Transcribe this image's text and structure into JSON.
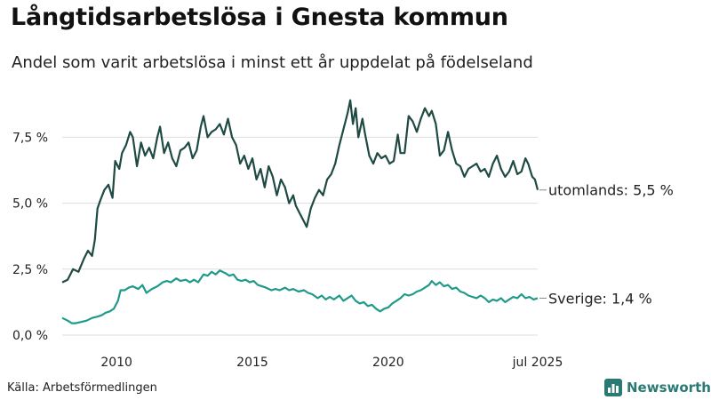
{
  "title": "Långtidsarbetslösa i Gnesta kommun",
  "subtitle": "Andel som varit arbetslösa i minst ett år uppdelat på födelseland",
  "source": "Källa: Arbetsförmedlingen",
  "brand": "Newsworthy",
  "chart_data": {
    "type": "line",
    "title": "Långtidsarbetslösa i Gnesta kommun",
    "subtitle": "Andel som varit arbetslösa i minst ett år uppdelat på födelseland",
    "xlim": [
      2008.0,
      2025.5
    ],
    "ylim": [
      0,
      9.5
    ],
    "grid": true,
    "x_ticks": [
      {
        "value": 2010,
        "label": "2010"
      },
      {
        "value": 2015,
        "label": "2015"
      },
      {
        "value": 2020,
        "label": "2020"
      },
      {
        "value": 2025.5,
        "label": "jul 2025"
      }
    ],
    "y_ticks": [
      {
        "value": 0,
        "label": "0,0 %"
      },
      {
        "value": 2.5,
        "label": "2,5 %"
      },
      {
        "value": 5,
        "label": "5,0 %"
      },
      {
        "value": 7.5,
        "label": "7,5 %"
      }
    ],
    "series": [
      {
        "name": "utomlands",
        "label": "utomlands: 5,5 %",
        "color": "#1f4a44",
        "points": [
          [
            2008.0,
            2.0
          ],
          [
            2008.2,
            2.1
          ],
          [
            2008.4,
            2.5
          ],
          [
            2008.6,
            2.4
          ],
          [
            2008.8,
            2.9
          ],
          [
            2008.95,
            3.2
          ],
          [
            2009.1,
            3.0
          ],
          [
            2009.2,
            3.6
          ],
          [
            2009.3,
            4.8
          ],
          [
            2009.4,
            5.1
          ],
          [
            2009.55,
            5.5
          ],
          [
            2009.7,
            5.7
          ],
          [
            2009.85,
            5.2
          ],
          [
            2009.95,
            6.6
          ],
          [
            2010.1,
            6.3
          ],
          [
            2010.2,
            6.9
          ],
          [
            2010.35,
            7.2
          ],
          [
            2010.5,
            7.7
          ],
          [
            2010.6,
            7.5
          ],
          [
            2010.75,
            6.4
          ],
          [
            2010.9,
            7.3
          ],
          [
            2011.05,
            6.8
          ],
          [
            2011.2,
            7.1
          ],
          [
            2011.35,
            6.7
          ],
          [
            2011.5,
            7.5
          ],
          [
            2011.6,
            7.9
          ],
          [
            2011.75,
            6.9
          ],
          [
            2011.9,
            7.3
          ],
          [
            2012.05,
            6.7
          ],
          [
            2012.2,
            6.4
          ],
          [
            2012.35,
            7.0
          ],
          [
            2012.5,
            7.1
          ],
          [
            2012.65,
            7.3
          ],
          [
            2012.8,
            6.7
          ],
          [
            2012.95,
            7.0
          ],
          [
            2013.1,
            7.9
          ],
          [
            2013.2,
            8.3
          ],
          [
            2013.35,
            7.5
          ],
          [
            2013.5,
            7.7
          ],
          [
            2013.65,
            7.8
          ],
          [
            2013.8,
            8.0
          ],
          [
            2013.95,
            7.6
          ],
          [
            2014.1,
            8.2
          ],
          [
            2014.25,
            7.5
          ],
          [
            2014.4,
            7.2
          ],
          [
            2014.55,
            6.5
          ],
          [
            2014.7,
            6.8
          ],
          [
            2014.85,
            6.3
          ],
          [
            2015.0,
            6.7
          ],
          [
            2015.15,
            5.9
          ],
          [
            2015.3,
            6.3
          ],
          [
            2015.45,
            5.6
          ],
          [
            2015.6,
            6.4
          ],
          [
            2015.75,
            6.0
          ],
          [
            2015.9,
            5.3
          ],
          [
            2016.05,
            5.9
          ],
          [
            2016.2,
            5.6
          ],
          [
            2016.35,
            5.0
          ],
          [
            2016.5,
            5.3
          ],
          [
            2016.6,
            4.9
          ],
          [
            2016.75,
            4.6
          ],
          [
            2016.9,
            4.3
          ],
          [
            2017.0,
            4.1
          ],
          [
            2017.15,
            4.8
          ],
          [
            2017.3,
            5.2
          ],
          [
            2017.45,
            5.5
          ],
          [
            2017.6,
            5.3
          ],
          [
            2017.75,
            5.9
          ],
          [
            2017.9,
            6.1
          ],
          [
            2018.05,
            6.5
          ],
          [
            2018.2,
            7.2
          ],
          [
            2018.35,
            7.8
          ],
          [
            2018.5,
            8.4
          ],
          [
            2018.6,
            8.9
          ],
          [
            2018.7,
            8.0
          ],
          [
            2018.8,
            8.6
          ],
          [
            2018.9,
            7.5
          ],
          [
            2019.05,
            8.2
          ],
          [
            2019.15,
            7.6
          ],
          [
            2019.3,
            6.8
          ],
          [
            2019.45,
            6.5
          ],
          [
            2019.6,
            6.9
          ],
          [
            2019.75,
            6.7
          ],
          [
            2019.9,
            6.8
          ],
          [
            2020.05,
            6.5
          ],
          [
            2020.2,
            6.6
          ],
          [
            2020.35,
            7.6
          ],
          [
            2020.45,
            6.9
          ],
          [
            2020.6,
            6.9
          ],
          [
            2020.75,
            8.3
          ],
          [
            2020.9,
            8.1
          ],
          [
            2021.05,
            7.7
          ],
          [
            2021.2,
            8.2
          ],
          [
            2021.35,
            8.6
          ],
          [
            2021.5,
            8.3
          ],
          [
            2021.6,
            8.5
          ],
          [
            2021.75,
            8.0
          ],
          [
            2021.9,
            6.8
          ],
          [
            2022.05,
            7.0
          ],
          [
            2022.2,
            7.7
          ],
          [
            2022.35,
            7.0
          ],
          [
            2022.5,
            6.5
          ],
          [
            2022.65,
            6.4
          ],
          [
            2022.8,
            6.0
          ],
          [
            2022.95,
            6.3
          ],
          [
            2023.1,
            6.4
          ],
          [
            2023.25,
            6.5
          ],
          [
            2023.4,
            6.2
          ],
          [
            2023.55,
            6.3
          ],
          [
            2023.7,
            6.0
          ],
          [
            2023.85,
            6.5
          ],
          [
            2024.0,
            6.8
          ],
          [
            2024.15,
            6.3
          ],
          [
            2024.3,
            6.0
          ],
          [
            2024.45,
            6.2
          ],
          [
            2024.6,
            6.6
          ],
          [
            2024.75,
            6.1
          ],
          [
            2024.9,
            6.2
          ],
          [
            2025.05,
            6.7
          ],
          [
            2025.15,
            6.5
          ],
          [
            2025.3,
            6.0
          ],
          [
            2025.4,
            5.9
          ],
          [
            2025.5,
            5.5
          ]
        ]
      },
      {
        "name": "Sverige",
        "label": "Sverige: 1,4 %",
        "color": "#1f9a8a",
        "points": [
          [
            2008.0,
            0.65
          ],
          [
            2008.2,
            0.55
          ],
          [
            2008.35,
            0.45
          ],
          [
            2008.5,
            0.45
          ],
          [
            2008.7,
            0.5
          ],
          [
            2008.9,
            0.55
          ],
          [
            2009.1,
            0.65
          ],
          [
            2009.3,
            0.7
          ],
          [
            2009.45,
            0.75
          ],
          [
            2009.6,
            0.85
          ],
          [
            2009.75,
            0.9
          ],
          [
            2009.9,
            1.0
          ],
          [
            2010.05,
            1.3
          ],
          [
            2010.15,
            1.7
          ],
          [
            2010.3,
            1.7
          ],
          [
            2010.45,
            1.8
          ],
          [
            2010.6,
            1.85
          ],
          [
            2010.8,
            1.75
          ],
          [
            2010.95,
            1.9
          ],
          [
            2011.1,
            1.6
          ],
          [
            2011.3,
            1.75
          ],
          [
            2011.5,
            1.85
          ],
          [
            2011.7,
            2.0
          ],
          [
            2011.85,
            2.05
          ],
          [
            2012.0,
            2.0
          ],
          [
            2012.2,
            2.15
          ],
          [
            2012.35,
            2.05
          ],
          [
            2012.55,
            2.1
          ],
          [
            2012.7,
            2.0
          ],
          [
            2012.85,
            2.1
          ],
          [
            2013.0,
            2.0
          ],
          [
            2013.2,
            2.3
          ],
          [
            2013.35,
            2.25
          ],
          [
            2013.5,
            2.4
          ],
          [
            2013.65,
            2.3
          ],
          [
            2013.8,
            2.45
          ],
          [
            2014.0,
            2.35
          ],
          [
            2014.15,
            2.25
          ],
          [
            2014.3,
            2.3
          ],
          [
            2014.45,
            2.1
          ],
          [
            2014.6,
            2.05
          ],
          [
            2014.75,
            2.1
          ],
          [
            2014.9,
            2.0
          ],
          [
            2015.05,
            2.05
          ],
          [
            2015.2,
            1.9
          ],
          [
            2015.35,
            1.85
          ],
          [
            2015.5,
            1.8
          ],
          [
            2015.7,
            1.7
          ],
          [
            2015.85,
            1.75
          ],
          [
            2016.0,
            1.7
          ],
          [
            2016.2,
            1.8
          ],
          [
            2016.35,
            1.7
          ],
          [
            2016.5,
            1.75
          ],
          [
            2016.7,
            1.65
          ],
          [
            2016.9,
            1.7
          ],
          [
            2017.05,
            1.6
          ],
          [
            2017.2,
            1.55
          ],
          [
            2017.4,
            1.4
          ],
          [
            2017.55,
            1.5
          ],
          [
            2017.7,
            1.35
          ],
          [
            2017.85,
            1.45
          ],
          [
            2018.0,
            1.35
          ],
          [
            2018.2,
            1.5
          ],
          [
            2018.35,
            1.3
          ],
          [
            2018.5,
            1.4
          ],
          [
            2018.65,
            1.5
          ],
          [
            2018.8,
            1.3
          ],
          [
            2018.95,
            1.2
          ],
          [
            2019.1,
            1.25
          ],
          [
            2019.25,
            1.1
          ],
          [
            2019.4,
            1.15
          ],
          [
            2019.55,
            1.0
          ],
          [
            2019.7,
            0.9
          ],
          [
            2019.85,
            1.0
          ],
          [
            2020.0,
            1.05
          ],
          [
            2020.15,
            1.2
          ],
          [
            2020.3,
            1.3
          ],
          [
            2020.45,
            1.4
          ],
          [
            2020.6,
            1.55
          ],
          [
            2020.75,
            1.5
          ],
          [
            2020.9,
            1.55
          ],
          [
            2021.05,
            1.65
          ],
          [
            2021.2,
            1.7
          ],
          [
            2021.35,
            1.8
          ],
          [
            2021.5,
            1.9
          ],
          [
            2021.6,
            2.05
          ],
          [
            2021.75,
            1.9
          ],
          [
            2021.9,
            2.0
          ],
          [
            2022.05,
            1.85
          ],
          [
            2022.2,
            1.9
          ],
          [
            2022.35,
            1.75
          ],
          [
            2022.5,
            1.8
          ],
          [
            2022.65,
            1.65
          ],
          [
            2022.8,
            1.6
          ],
          [
            2022.95,
            1.5
          ],
          [
            2023.1,
            1.45
          ],
          [
            2023.25,
            1.4
          ],
          [
            2023.4,
            1.5
          ],
          [
            2023.55,
            1.4
          ],
          [
            2023.7,
            1.25
          ],
          [
            2023.85,
            1.35
          ],
          [
            2024.0,
            1.3
          ],
          [
            2024.15,
            1.4
          ],
          [
            2024.3,
            1.25
          ],
          [
            2024.45,
            1.35
          ],
          [
            2024.6,
            1.45
          ],
          [
            2024.75,
            1.4
          ],
          [
            2024.9,
            1.55
          ],
          [
            2025.05,
            1.4
          ],
          [
            2025.2,
            1.45
          ],
          [
            2025.35,
            1.35
          ],
          [
            2025.5,
            1.4
          ]
        ]
      }
    ]
  }
}
